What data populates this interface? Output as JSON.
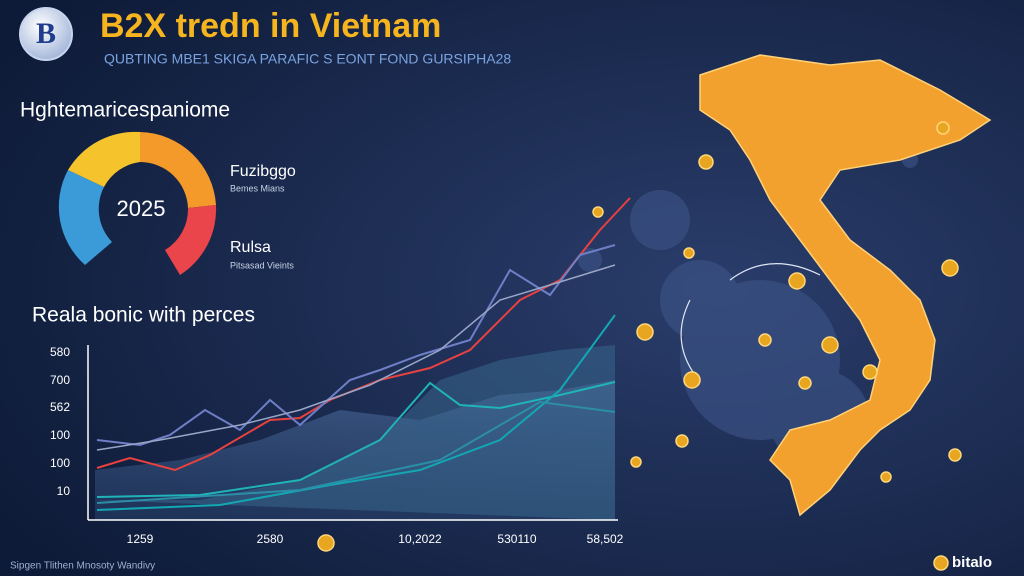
{
  "header": {
    "logo": "B",
    "title": "B2X tredn in Vietnam",
    "subtitle": "QUBTING MBE1 SKIGA PARAFIC S EONT FOND GURSIPHA28"
  },
  "gauge": {
    "heading": "Hghtemaricespaniome",
    "center": "2025",
    "legend": [
      {
        "label": "Fuzibggo",
        "sub": "Bemes Mians"
      },
      {
        "label": "Rulsa",
        "sub": "Pitsasad Vieints"
      }
    ]
  },
  "chart": {
    "heading": "Reala bonic with perces",
    "y_labels": [
      "580",
      "700",
      "562",
      "100",
      "100",
      "10"
    ],
    "x_labels": [
      "1259",
      "2580",
      "10,2022",
      "530110",
      "58,502"
    ]
  },
  "footer": {
    "note": "Sipgen Tlithen Mnosoty Wandivy",
    "brand": "bitalo"
  }
}
